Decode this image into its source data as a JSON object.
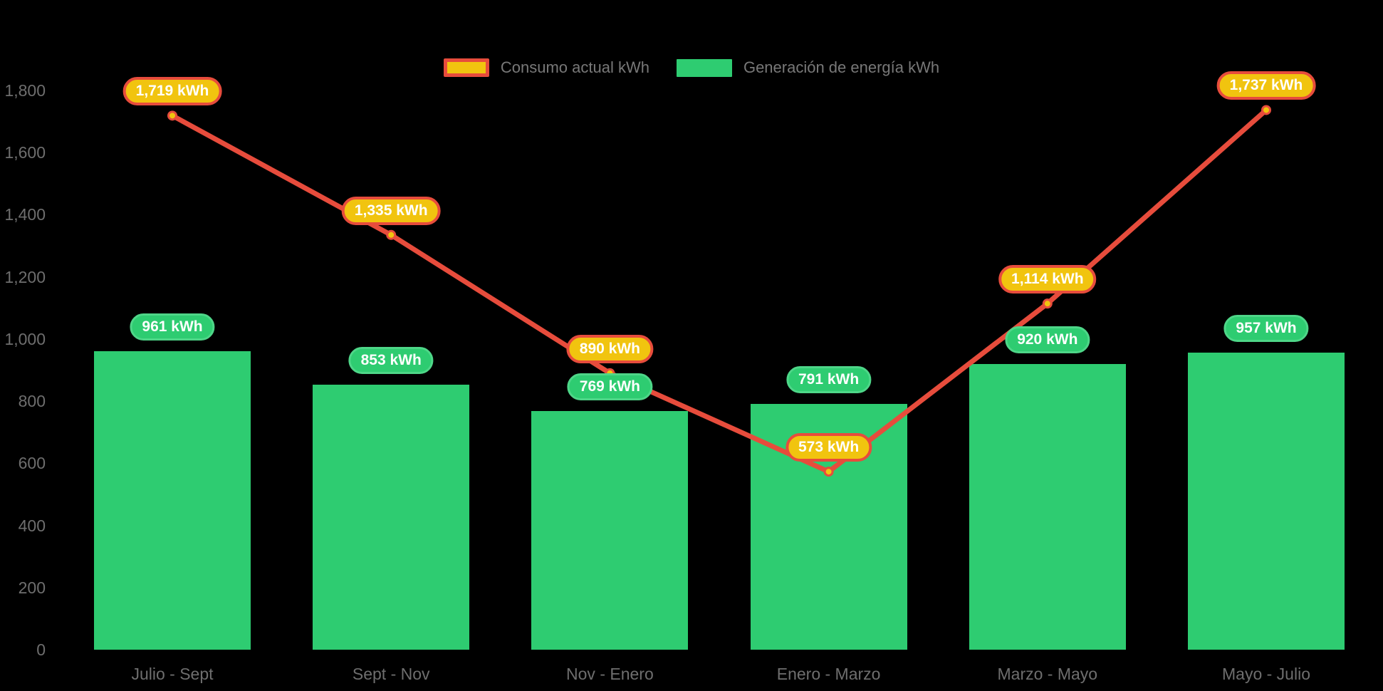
{
  "background_color": "#000000",
  "legend": {
    "position": "top-center",
    "items": [
      {
        "label": "Consumo actual kWh",
        "swatch_fill": "#F1C40F",
        "swatch_border": "#E74C3C"
      },
      {
        "label": "Generación de energía kWh",
        "swatch_fill": "#2ECC71",
        "swatch_border": null
      }
    ]
  },
  "chart_data": {
    "type": "bar+line",
    "title": "",
    "xlabel": "",
    "ylabel": "",
    "grid": false,
    "legend_position": "top-center",
    "categories": [
      "Julio - Sept",
      "Sept - Nov",
      "Nov - Enero",
      "Enero - Marzo",
      "Marzo - Mayo",
      "Mayo - Julio"
    ],
    "series": [
      {
        "name": "Consumo actual kWh",
        "type": "line",
        "line_color": "#E74C3C",
        "marker_fill": "#F1C40F",
        "marker_stroke": "#E74C3C",
        "values": [
          1719,
          1335,
          890,
          573,
          1114,
          1737
        ],
        "labels": [
          "1,719 kWh",
          "1,335 kWh",
          "890 kWh",
          "573 kWh",
          "1,114 kWh",
          "1,737 kWh"
        ]
      },
      {
        "name": "Generación de energía kWh",
        "type": "bar",
        "bar_color": "#2ECC71",
        "values": [
          961,
          853,
          769,
          791,
          920,
          957
        ],
        "labels": [
          "961 kWh",
          "853 kWh",
          "769 kWh",
          "791 kWh",
          "920 kWh",
          "957 kWh"
        ]
      }
    ],
    "ylim": [
      0,
      1800
    ],
    "yticks": [
      {
        "value": 1800,
        "label": "1,800"
      },
      {
        "value": 1600,
        "label": "1,600"
      },
      {
        "value": 1400,
        "label": "1,400"
      },
      {
        "value": 1200,
        "label": "1,200"
      },
      {
        "value": 1000,
        "label": "1,000"
      },
      {
        "value": 800,
        "label": "800"
      },
      {
        "value": 600,
        "label": "600"
      },
      {
        "value": 400,
        "label": "400"
      },
      {
        "value": 200,
        "label": "200"
      },
      {
        "value": 0,
        "label": "0"
      }
    ]
  },
  "colors": {
    "consumo_line": "#E74C3C",
    "consumo_badge_fill": "#F1C40F",
    "consumo_badge_border": "#E74C3C",
    "generacion_bar": "#2ECC71",
    "generacion_badge_border": "#4ED688",
    "axis_text": "#6E6E6E",
    "legend_text": "#787878",
    "badge_text": "#FFFFFF"
  }
}
